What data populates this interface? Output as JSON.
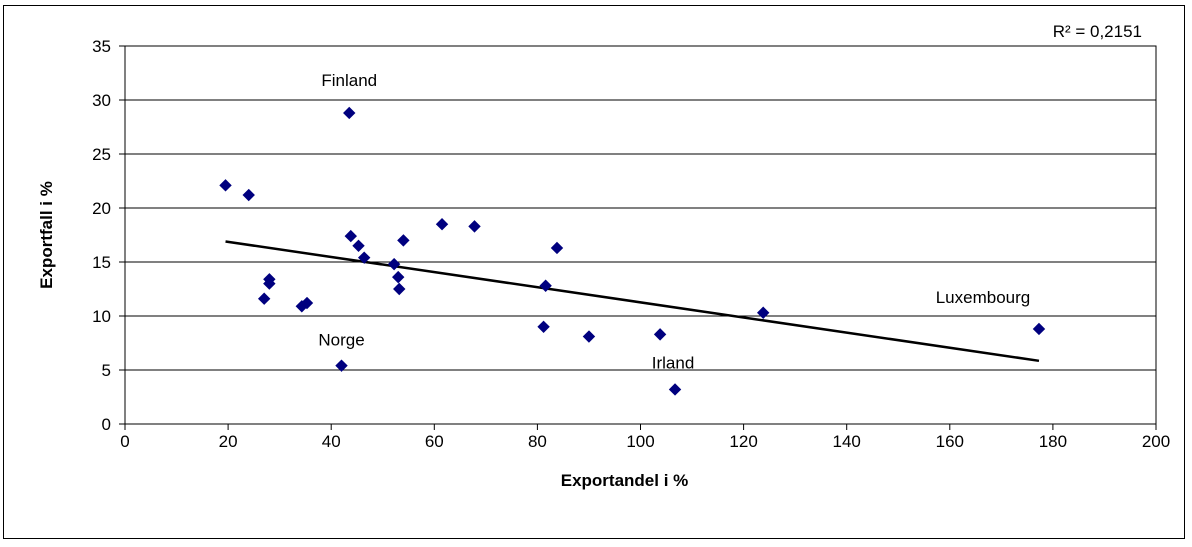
{
  "chart_data": {
    "type": "scatter",
    "title": "",
    "xlabel": "Exportandel i %",
    "ylabel": "Exportfall i %",
    "xlim": [
      0,
      200
    ],
    "ylim": [
      0,
      35
    ],
    "x_ticks": [
      0,
      20,
      40,
      60,
      80,
      100,
      120,
      140,
      160,
      180,
      200
    ],
    "y_ticks": [
      0,
      5,
      10,
      15,
      20,
      25,
      30,
      35
    ],
    "grid": "horizontal",
    "marker_color": "#00007f",
    "points": [
      {
        "x": 19.5,
        "y": 22.1
      },
      {
        "x": 24.0,
        "y": 21.2
      },
      {
        "x": 27.0,
        "y": 11.6
      },
      {
        "x": 28.0,
        "y": 13.4
      },
      {
        "x": 28.0,
        "y": 13.0
      },
      {
        "x": 34.3,
        "y": 10.9
      },
      {
        "x": 35.3,
        "y": 11.2
      },
      {
        "x": 42.0,
        "y": 5.4
      },
      {
        "x": 43.5,
        "y": 28.8
      },
      {
        "x": 43.8,
        "y": 17.4
      },
      {
        "x": 45.3,
        "y": 16.5
      },
      {
        "x": 46.4,
        "y": 15.4
      },
      {
        "x": 52.2,
        "y": 14.8
      },
      {
        "x": 53.0,
        "y": 13.6
      },
      {
        "x": 53.2,
        "y": 12.5
      },
      {
        "x": 54.0,
        "y": 17.0
      },
      {
        "x": 61.5,
        "y": 18.5
      },
      {
        "x": 67.8,
        "y": 18.3
      },
      {
        "x": 81.2,
        "y": 9.0
      },
      {
        "x": 81.6,
        "y": 12.8
      },
      {
        "x": 83.8,
        "y": 16.3
      },
      {
        "x": 90.0,
        "y": 8.1
      },
      {
        "x": 103.8,
        "y": 8.3
      },
      {
        "x": 106.7,
        "y": 3.2
      },
      {
        "x": 123.8,
        "y": 10.3
      },
      {
        "x": 177.3,
        "y": 8.8
      }
    ],
    "trendline": {
      "x": [
        19.5,
        177.3
      ],
      "y": [
        16.9,
        5.85
      ]
    },
    "r_squared_label": "R² = 0,2151",
    "annotations": [
      {
        "text": "Finland",
        "x": 43.5,
        "y": 28.8
      },
      {
        "text": "Norge",
        "x": 42.0,
        "y": 5.4
      },
      {
        "text": "Irland",
        "x": 106.7,
        "y": 3.2
      },
      {
        "text": "Luxembourg",
        "x": 177.3,
        "y": 8.8
      }
    ]
  }
}
